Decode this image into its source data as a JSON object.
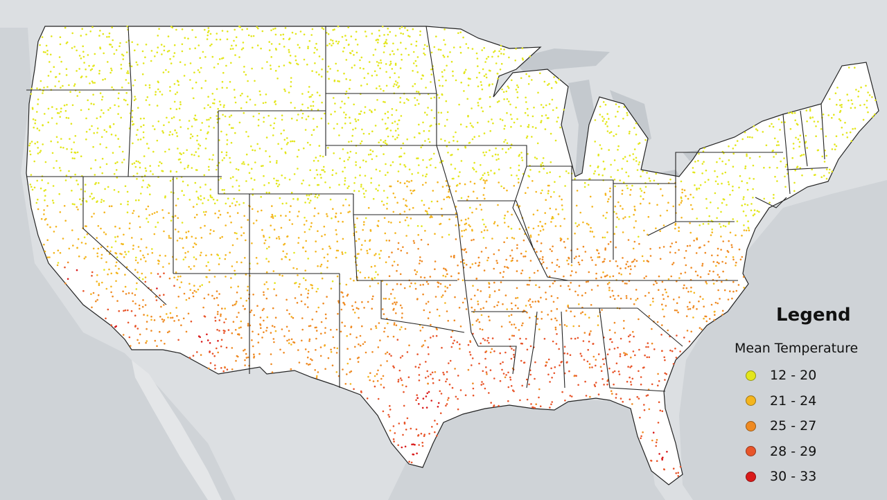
{
  "legend": {
    "title": "Legend",
    "subtitle": "Mean Temperature",
    "items": [
      {
        "label": "12 - 20",
        "color": "#e3e61c"
      },
      {
        "label": "21 - 24",
        "color": "#f4b51e"
      },
      {
        "label": "25 - 27",
        "color": "#ef8a22"
      },
      {
        "label": "28 - 29",
        "color": "#e8552a"
      },
      {
        "label": "30 - 33",
        "color": "#d91a1a"
      }
    ]
  },
  "colors": {
    "background_land": "#dcdfe2",
    "water": "#c9cdd1",
    "us_land": "#ffffff",
    "state_border": "#222222"
  }
}
